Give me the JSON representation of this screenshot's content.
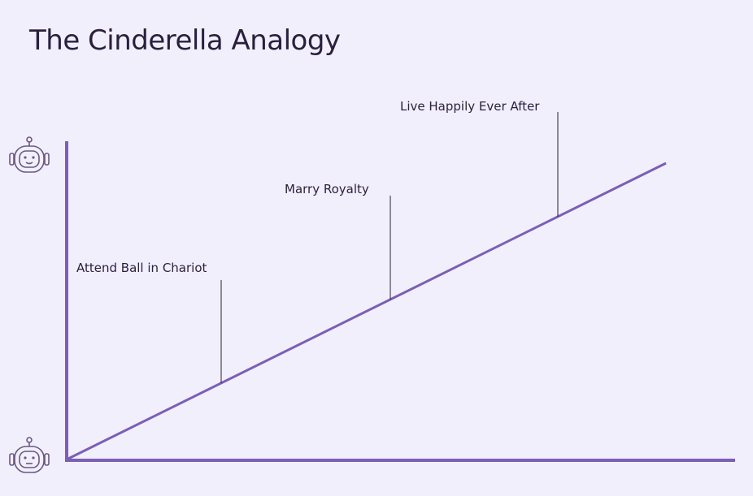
{
  "title": "The Cinderella Analogy",
  "colors": {
    "background": "#f1effc",
    "accent": "#7b5fb5",
    "text": "#2a1f3d"
  },
  "icons": {
    "top": "robot-happy-icon",
    "bottom": "robot-neutral-icon"
  },
  "milestones": [
    {
      "label": "Attend Ball in Chariot"
    },
    {
      "label": "Marry Royalty"
    },
    {
      "label": "Live Happily Ever After"
    }
  ]
}
